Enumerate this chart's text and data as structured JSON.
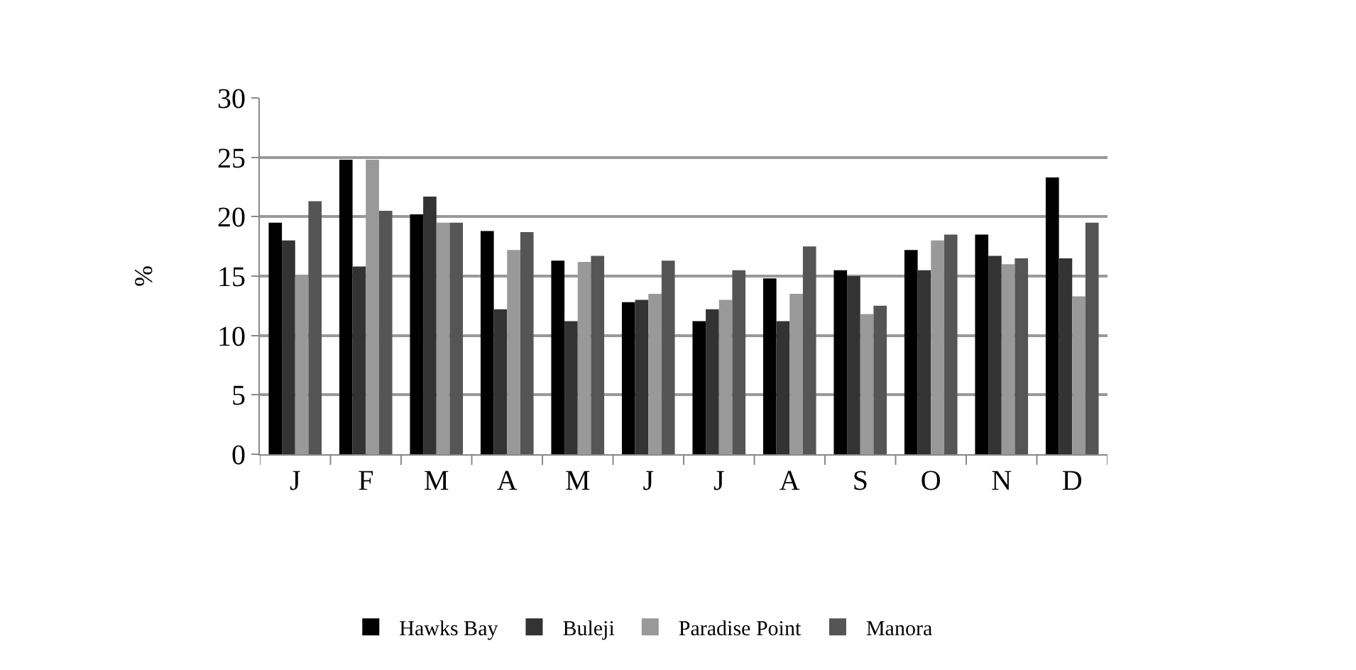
{
  "chart_data": {
    "type": "bar",
    "ylabel": "%",
    "categories": [
      "J",
      "F",
      "M",
      "A",
      "M",
      "J",
      "J",
      "A",
      "S",
      "O",
      "N",
      "D"
    ],
    "series": [
      {
        "name": "Hawks Bay",
        "color": "#000000",
        "values": [
          19.5,
          24.8,
          20.2,
          18.8,
          16.3,
          12.8,
          11.2,
          14.8,
          15.5,
          17.2,
          18.5,
          23.3
        ]
      },
      {
        "name": "Buleji",
        "color": "#333333",
        "values": [
          18,
          15.8,
          21.7,
          12.2,
          11.2,
          13,
          12.2,
          11.2,
          15,
          15.5,
          16.7,
          16.5
        ]
      },
      {
        "name": "Paradise Point",
        "color": "#999999",
        "values": [
          15,
          24.8,
          19.5,
          17.2,
          16.2,
          13.5,
          13,
          13.5,
          11.8,
          18,
          16,
          13.3
        ]
      },
      {
        "name": "Manora",
        "color": "#555555",
        "values": [
          21.3,
          20.5,
          19.5,
          18.7,
          16.7,
          16.3,
          15.5,
          17.5,
          12.5,
          18.5,
          16.5,
          19.5
        ]
      }
    ],
    "ylim": [
      0,
      30
    ],
    "yticks": [
      0,
      5,
      10,
      15,
      20,
      25,
      30
    ],
    "grid": "y",
    "legend": "bottom"
  }
}
